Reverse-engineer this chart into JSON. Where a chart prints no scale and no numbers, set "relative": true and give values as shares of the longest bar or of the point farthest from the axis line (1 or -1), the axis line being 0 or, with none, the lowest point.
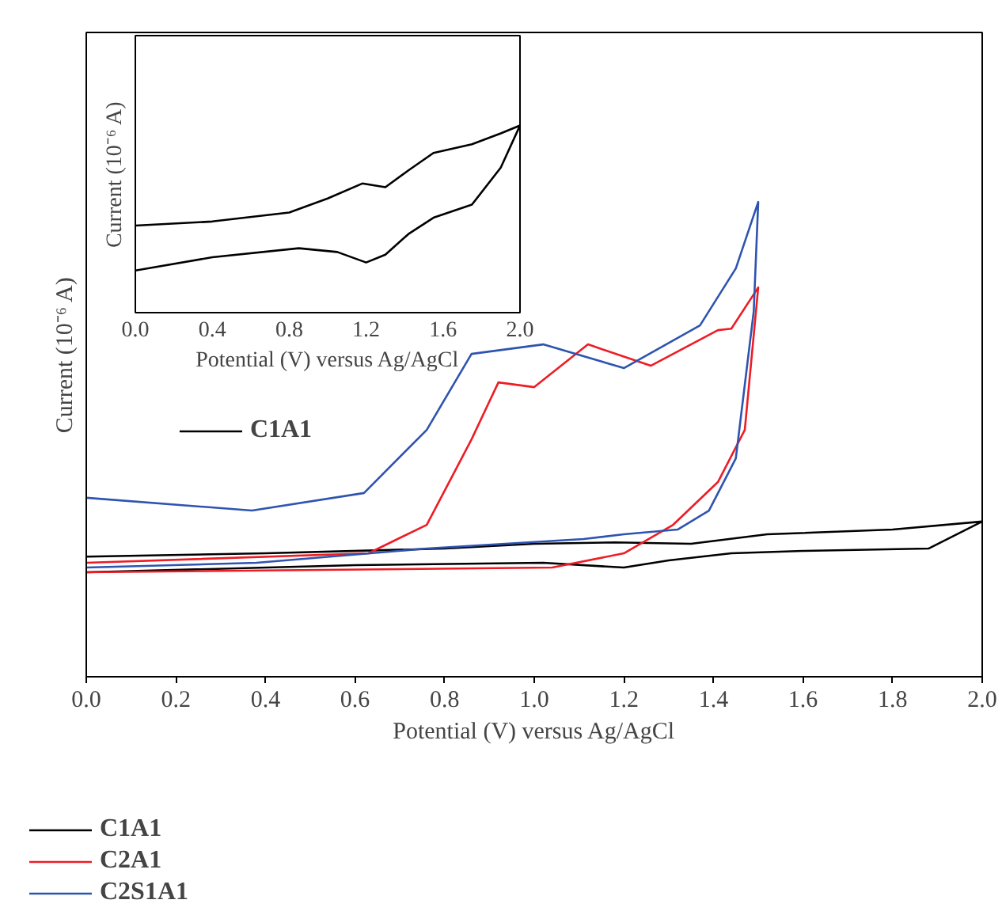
{
  "chart_data": [
    {
      "type": "line",
      "relative": true,
      "xlabel": "Potential (V) versus Ag/AgCl",
      "ylabel": "Current (10⁻⁶ A)",
      "xlim": [
        0,
        2
      ],
      "xticks": [
        {
          "value": 0,
          "label": "0.0"
        },
        {
          "value": 0.2,
          "label": "0.2"
        },
        {
          "value": 0.4,
          "label": "0.4"
        },
        {
          "value": 0.6,
          "label": "0.6"
        },
        {
          "value": 0.8,
          "label": "0.8"
        },
        {
          "value": 1,
          "label": "1.0"
        },
        {
          "value": 1.2,
          "label": "1.2"
        },
        {
          "value": 1.4,
          "label": "1.4"
        },
        {
          "value": 1.6,
          "label": "1.6"
        },
        {
          "value": 1.8,
          "label": "1.8"
        },
        {
          "value": 2,
          "label": "2.0"
        }
      ],
      "tick_labels": "x",
      "grid": false,
      "legend": "bottom left",
      "marker": "none",
      "series": [
        {
          "name": "C1A1",
          "color": "#000000",
          "x": [
            0,
            0.4,
            0.8,
            1.0,
            1.18,
            1.35,
            1.52,
            1.8,
            2.0,
            1.88,
            1.6,
            1.44,
            1.3,
            1.2,
            1.02,
            0.6,
            0
          ],
          "values": [
            0.253,
            0.26,
            0.27,
            0.28,
            0.283,
            0.28,
            0.3,
            0.31,
            0.327,
            0.27,
            0.265,
            0.26,
            0.245,
            0.23,
            0.24,
            0.235,
            0.22
          ]
        },
        {
          "name": "C2A1",
          "color": "#ee1c25",
          "x": [
            0,
            0.63,
            0.76,
            0.86,
            0.92,
            1.0,
            1.12,
            1.26,
            1.41,
            1.44,
            1.5,
            1.47,
            1.41,
            1.31,
            1.2,
            1.04,
            0
          ],
          "values": [
            0.24,
            0.26,
            0.32,
            0.5,
            0.62,
            0.61,
            0.7,
            0.655,
            0.73,
            0.733,
            0.82,
            0.52,
            0.41,
            0.32,
            0.26,
            0.23,
            0.22
          ]
        },
        {
          "name": "C2S1A1",
          "color": "#2e54b0",
          "x": [
            0,
            0.37,
            0.62,
            0.76,
            0.86,
            1.02,
            1.2,
            1.37,
            1.45,
            1.5,
            1.49,
            1.45,
            1.39,
            1.32,
            1.2,
            1.11,
            0.76,
            0.38,
            0
          ],
          "values": [
            0.377,
            0.35,
            0.387,
            0.52,
            0.68,
            0.7,
            0.65,
            0.74,
            0.86,
            1.0,
            0.77,
            0.46,
            0.35,
            0.31,
            0.3,
            0.29,
            0.27,
            0.24,
            0.23
          ]
        }
      ]
    },
    {
      "type": "line",
      "relative": true,
      "xlabel": "Potential (V) versus Ag/AgCl",
      "ylabel": "Current (10⁻⁶ A)",
      "xlim": [
        0,
        2
      ],
      "xticks": [
        {
          "value": 0,
          "label": "0.0"
        },
        {
          "value": 0.4,
          "label": "0.4"
        },
        {
          "value": 0.8,
          "label": "0.8"
        },
        {
          "value": 1.2,
          "label": "1.2"
        },
        {
          "value": 1.6,
          "label": "1.6"
        },
        {
          "value": 2,
          "label": "2.0"
        }
      ],
      "tick_labels": "x",
      "grid": false,
      "legend": "bottom",
      "marker": "none",
      "series": [
        {
          "name": "C1A1",
          "color": "#000000",
          "x": [
            0,
            0.4,
            0.8,
            1.0,
            1.18,
            1.3,
            1.42,
            1.55,
            1.75,
            1.9,
            2.0,
            1.9,
            1.75,
            1.55,
            1.42,
            1.3,
            1.2,
            1.05,
            0.85,
            0.4,
            0
          ],
          "values": [
            0.465,
            0.487,
            0.535,
            0.61,
            0.69,
            0.67,
            0.76,
            0.853,
            0.9,
            0.958,
            1.0,
            0.775,
            0.577,
            0.507,
            0.42,
            0.31,
            0.268,
            0.324,
            0.344,
            0.296,
            0.225
          ]
        }
      ]
    }
  ]
}
